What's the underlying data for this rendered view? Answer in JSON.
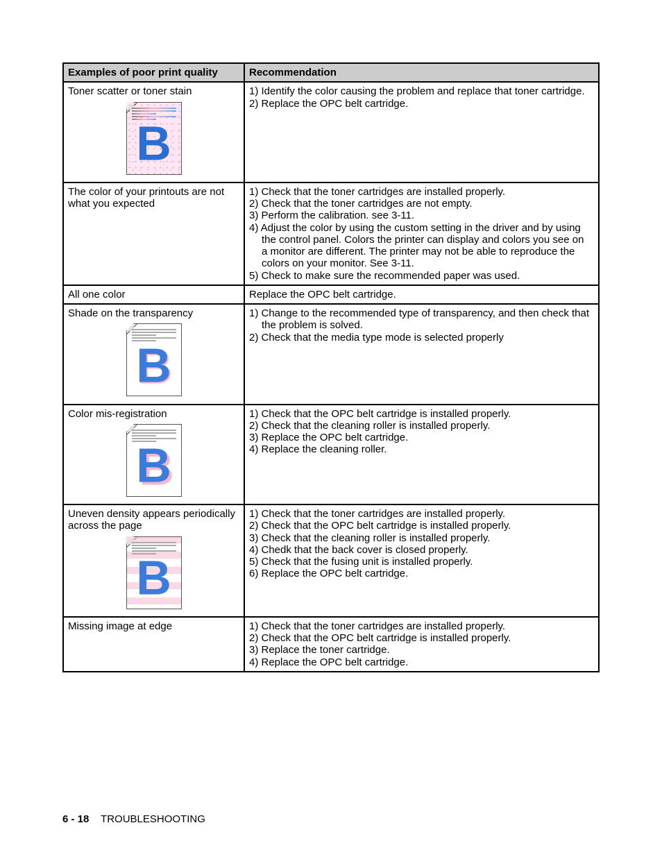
{
  "table": {
    "header": {
      "left": "Examples of poor print quality",
      "right": "Recommendation"
    },
    "rows": {
      "r1": {
        "title": "Toner scatter or toner stain",
        "rec1": "1) Identify the color causing the problem and replace that toner cartridge.",
        "rec2": "2) Replace the OPC belt cartridge."
      },
      "r2": {
        "title1": "The color of your printouts are not",
        "title2": "what you expected",
        "rec1": "1) Check that the toner cartridges are installed properly.",
        "rec2": "2) Check that the toner cartridges are not empty.",
        "rec3": "3) Perform the calibration. see 3-11.",
        "rec4": "4) Adjust the color by using the custom setting in the driver and by using",
        "rec4b": "the control panel. Colors the printer can display and colors you see on",
        "rec4c": "a monitor are different. The printer may not be able to reproduce the",
        "rec4d": "colors on your monitor. See 3-11.",
        "rec5": "5) Check to make sure the recommended paper was used."
      },
      "r3": {
        "title": "All one color",
        "rec": "Replace the OPC belt cartridge."
      },
      "r4": {
        "title": "Shade on the transparency",
        "rec1a": "1) Change to the recommended type of transparency, and then check that",
        "rec1b": "the problem is solved.",
        "rec2": "2) Check that the media type mode is selected properly"
      },
      "r5": {
        "title": "Color mis-registration",
        "rec1": "1) Check that the OPC belt cartridge is installed properly.",
        "rec2": "2) Check that the cleaning roller is installed properly.",
        "rec3": "3) Replace the OPC belt cartridge.",
        "rec4": "4) Replace the cleaning roller."
      },
      "r6": {
        "title1": "Uneven density appears periodically",
        "title2": "across the page",
        "rec1": "1) Check that the toner cartridges are installed properly.",
        "rec2": "2) Check that the OPC belt cartridge is installed properly.",
        "rec3": "3) Check that the cleaning roller is installed properly.",
        "rec4": "4) Chedk that the back cover is closed properly.",
        "rec5": "5) Check that the fusing unit is installed properly.",
        "rec6": "6) Replace the OPC belt cartridge."
      },
      "r7": {
        "title": "Missing image at edge",
        "rec1": "1) Check that the toner cartridges are installed properly.",
        "rec2": "2) Check that the OPC belt cartridge is installed properly.",
        "rec3": "3) Replace the toner cartridge.",
        "rec4": "4) Replace the OPC belt cartridge."
      }
    }
  },
  "footer": {
    "page": "6 - 18",
    "section": "TROUBLESHOOTING"
  },
  "style": {
    "colors": {
      "header_bg": "#cccccc",
      "border": "#000000",
      "pink": "#f6b7ce",
      "blue": "#3a7bdc"
    }
  }
}
